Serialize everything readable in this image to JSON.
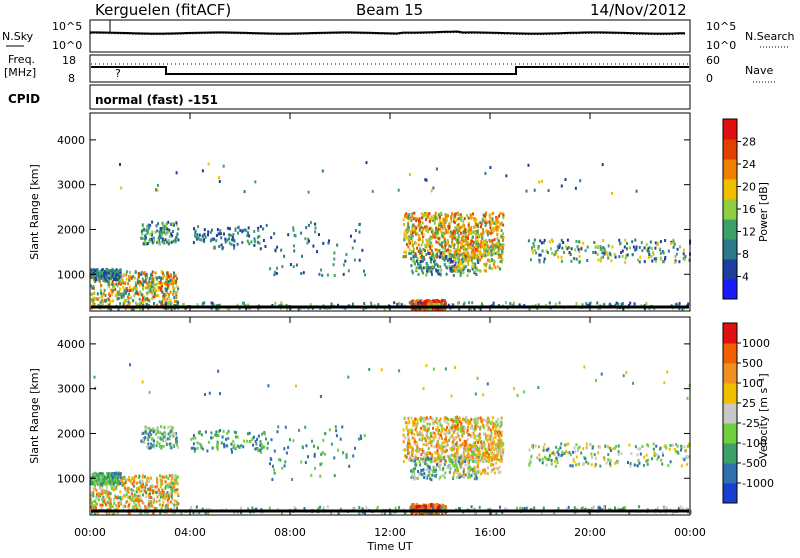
{
  "header": {
    "station": "Kerguelen (fitACF)",
    "beam": "Beam 15",
    "date": "14/Nov/2012"
  },
  "noise_panel": {
    "left_label": "N.Sky",
    "right_label": "N.Search",
    "left_ticks": [
      "10^5",
      "10^0"
    ],
    "right_ticks": [
      "10^5",
      "10^0"
    ]
  },
  "freq_panel": {
    "left_label_1": "Freq.",
    "left_label_2": "[MHz]",
    "right_label": "Nave",
    "left_ticks": [
      "18",
      "8"
    ],
    "right_ticks": [
      "60",
      "0"
    ],
    "marker": "?"
  },
  "cpid_panel": {
    "label": "CPID",
    "value": "normal (fast) -151"
  },
  "chart_data": [
    {
      "type": "heatmap",
      "name": "power",
      "ylabel": "Slant Range [km]",
      "yticks": [
        "4000",
        "3000",
        "2000",
        "1000"
      ],
      "ylim": [
        180,
        4600
      ],
      "colorbar_label": "Power [dB]",
      "colorbar_ticks": [
        "28",
        "24",
        "20",
        "16",
        "12",
        "8",
        "4"
      ],
      "colors": [
        "#1a1aff",
        "#1f3f9e",
        "#2a7a8a",
        "#3f9f6a",
        "#8fcf3f",
        "#f0c000",
        "#f08000",
        "#e04000",
        "#e01010"
      ]
    },
    {
      "type": "heatmap",
      "name": "velocity",
      "ylabel": "Slant Range [km]",
      "yticks": [
        "4000",
        "3000",
        "2000",
        "1000"
      ],
      "ylim": [
        180,
        4600
      ],
      "colorbar_label": "Velocity [m s⁻¹]",
      "colorbar_ticks": [
        "1000",
        "500",
        "100",
        "25",
        "-25",
        "-100",
        "-500",
        "-1000"
      ],
      "colors": [
        "#1a3fd0",
        "#2f6fb0",
        "#3f9f6a",
        "#6fcf3f",
        "#c8c8c8",
        "#f0c000",
        "#f09020",
        "#f06000",
        "#e01010"
      ]
    }
  ],
  "xaxis": {
    "ticks": [
      "00:00",
      "04:00",
      "08:00",
      "12:00",
      "16:00",
      "20:00",
      "00:00"
    ],
    "label": "Time UT"
  }
}
